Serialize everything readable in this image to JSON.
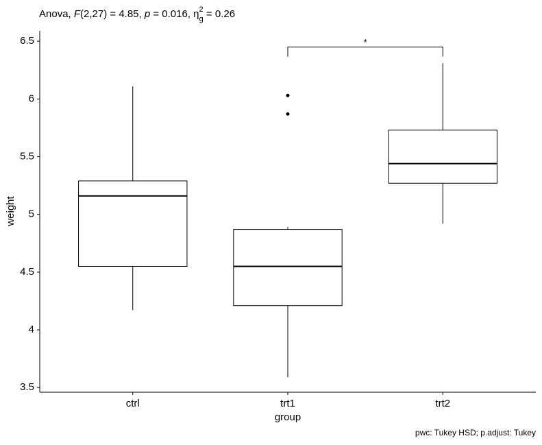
{
  "chart_data": {
    "type": "boxplot",
    "title_parts": [
      "Anova, ",
      "F",
      "(2,27) = 4.85, ",
      "p",
      " = 0.016, η",
      "2",
      "g",
      " = 0.26"
    ],
    "x_label": "group",
    "y_label": "weight",
    "caption": "pwc: Tukey HSD; p.adjust: Tukey",
    "categories": [
      "ctrl",
      "trt1",
      "trt2"
    ],
    "boxes": [
      {
        "min": 4.17,
        "q1": 4.55,
        "median": 5.16,
        "q3": 5.29,
        "max": 6.11,
        "outliers": []
      },
      {
        "min": 3.59,
        "q1": 4.21,
        "median": 4.55,
        "q3": 4.87,
        "max": 4.89,
        "outliers": [
          6.03,
          5.87
        ]
      },
      {
        "min": 4.92,
        "q1": 5.27,
        "median": 5.44,
        "q3": 5.73,
        "max": 6.31,
        "outliers": []
      }
    ],
    "comparisons": [
      {
        "from": 1,
        "to": 2,
        "label": "*",
        "y": 6.45
      }
    ],
    "ylim": [
      3.46,
      6.59
    ],
    "yticks": [
      3.5,
      4.0,
      4.5,
      5.0,
      5.5,
      6.0,
      6.5
    ]
  }
}
